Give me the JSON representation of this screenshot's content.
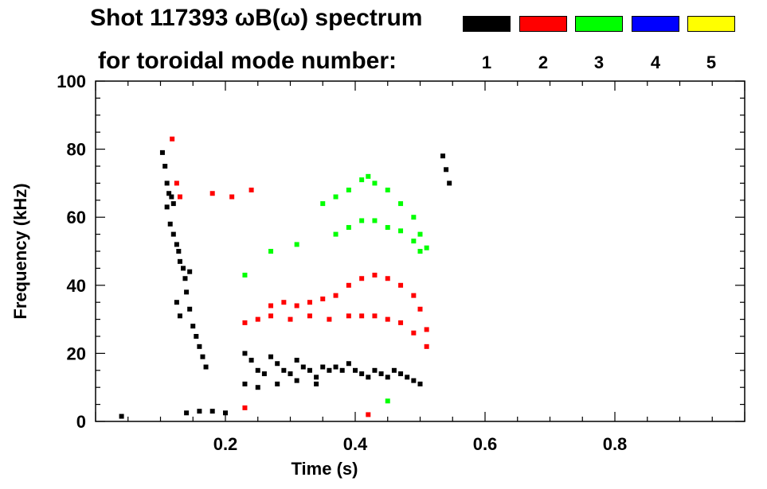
{
  "chart_data": {
    "type": "scatter",
    "title_line1": "Shot 117393 ωB(ω) spectrum",
    "title_line2": "for toroidal mode number:",
    "xlabel": "Time (s)",
    "ylabel": "Frequency (kHz)",
    "xlim": [
      0.0,
      1.0
    ],
    "ylim": [
      0,
      100
    ],
    "xticks": [
      0.2,
      0.4,
      0.6,
      0.8
    ],
    "xtick_labels": [
      "0.2",
      "0.4",
      "0.6",
      "0.8"
    ],
    "yticks": [
      0,
      20,
      40,
      60,
      80,
      100
    ],
    "ytick_labels": [
      "0",
      "20",
      "40",
      "60",
      "80",
      "100"
    ],
    "grid": false,
    "legend": {
      "placement": "top-right",
      "entries": [
        {
          "label": "1",
          "color": "#000000"
        },
        {
          "label": "2",
          "color": "#ff0000"
        },
        {
          "label": "3",
          "color": "#00ff00"
        },
        {
          "label": "4",
          "color": "#0000ff"
        },
        {
          "label": "5",
          "color": "#ffff00"
        }
      ]
    },
    "series": [
      {
        "name": "1",
        "color": "#000000",
        "points": [
          [
            0.103,
            79
          ],
          [
            0.107,
            75
          ],
          [
            0.11,
            70
          ],
          [
            0.113,
            67
          ],
          [
            0.117,
            66
          ],
          [
            0.12,
            64
          ],
          [
            0.11,
            63
          ],
          [
            0.115,
            58
          ],
          [
            0.12,
            55
          ],
          [
            0.125,
            52
          ],
          [
            0.128,
            50
          ],
          [
            0.13,
            47
          ],
          [
            0.135,
            45
          ],
          [
            0.138,
            42
          ],
          [
            0.14,
            38
          ],
          [
            0.145,
            33
          ],
          [
            0.15,
            28
          ],
          [
            0.155,
            25
          ],
          [
            0.16,
            22
          ],
          [
            0.165,
            19
          ],
          [
            0.17,
            16
          ],
          [
            0.125,
            35
          ],
          [
            0.13,
            31
          ],
          [
            0.145,
            44
          ],
          [
            0.23,
            20
          ],
          [
            0.24,
            18
          ],
          [
            0.25,
            15
          ],
          [
            0.26,
            14
          ],
          [
            0.27,
            19
          ],
          [
            0.28,
            17
          ],
          [
            0.29,
            15
          ],
          [
            0.3,
            14
          ],
          [
            0.31,
            18
          ],
          [
            0.32,
            16
          ],
          [
            0.33,
            15
          ],
          [
            0.34,
            13
          ],
          [
            0.35,
            16
          ],
          [
            0.36,
            15
          ],
          [
            0.23,
            11
          ],
          [
            0.25,
            10
          ],
          [
            0.28,
            11
          ],
          [
            0.31,
            12
          ],
          [
            0.34,
            11
          ],
          [
            0.37,
            16
          ],
          [
            0.38,
            15
          ],
          [
            0.39,
            17
          ],
          [
            0.4,
            15
          ],
          [
            0.41,
            14
          ],
          [
            0.42,
            13
          ],
          [
            0.43,
            15
          ],
          [
            0.44,
            14
          ],
          [
            0.45,
            13
          ],
          [
            0.46,
            15
          ],
          [
            0.47,
            14
          ],
          [
            0.48,
            13
          ],
          [
            0.49,
            12
          ],
          [
            0.5,
            11
          ],
          [
            0.535,
            78
          ],
          [
            0.54,
            74
          ],
          [
            0.545,
            70
          ],
          [
            0.04,
            1.5
          ],
          [
            0.14,
            2.5
          ],
          [
            0.16,
            3
          ],
          [
            0.18,
            3
          ],
          [
            0.2,
            2.5
          ]
        ]
      },
      {
        "name": "2",
        "color": "#ff0000",
        "points": [
          [
            0.118,
            83
          ],
          [
            0.125,
            70
          ],
          [
            0.13,
            66
          ],
          [
            0.18,
            67
          ],
          [
            0.21,
            66
          ],
          [
            0.24,
            68
          ],
          [
            0.23,
            29
          ],
          [
            0.25,
            30
          ],
          [
            0.27,
            34
          ],
          [
            0.29,
            35
          ],
          [
            0.31,
            34
          ],
          [
            0.33,
            35
          ],
          [
            0.35,
            36
          ],
          [
            0.37,
            37
          ],
          [
            0.39,
            40
          ],
          [
            0.41,
            42
          ],
          [
            0.43,
            43
          ],
          [
            0.45,
            42
          ],
          [
            0.47,
            40
          ],
          [
            0.49,
            37
          ],
          [
            0.5,
            33
          ],
          [
            0.51,
            27
          ],
          [
            0.27,
            31
          ],
          [
            0.3,
            30
          ],
          [
            0.33,
            31
          ],
          [
            0.36,
            30
          ],
          [
            0.39,
            31
          ],
          [
            0.41,
            31
          ],
          [
            0.43,
            31
          ],
          [
            0.45,
            30
          ],
          [
            0.47,
            29
          ],
          [
            0.49,
            26
          ],
          [
            0.51,
            22
          ],
          [
            0.42,
            2
          ],
          [
            0.23,
            4
          ]
        ]
      },
      {
        "name": "3",
        "color": "#00ff00",
        "points": [
          [
            0.35,
            64
          ],
          [
            0.37,
            66
          ],
          [
            0.39,
            68
          ],
          [
            0.41,
            71
          ],
          [
            0.42,
            72
          ],
          [
            0.43,
            70
          ],
          [
            0.45,
            68
          ],
          [
            0.47,
            64
          ],
          [
            0.49,
            60
          ],
          [
            0.5,
            55
          ],
          [
            0.51,
            51
          ],
          [
            0.37,
            55
          ],
          [
            0.39,
            57
          ],
          [
            0.41,
            59
          ],
          [
            0.43,
            59
          ],
          [
            0.45,
            57
          ],
          [
            0.47,
            56
          ],
          [
            0.49,
            53
          ],
          [
            0.5,
            50
          ],
          [
            0.23,
            43
          ],
          [
            0.27,
            50
          ],
          [
            0.31,
            52
          ],
          [
            0.45,
            6
          ]
        ]
      },
      {
        "name": "4",
        "color": "#0000ff",
        "points": []
      },
      {
        "name": "5",
        "color": "#ffff00",
        "points": []
      }
    ]
  }
}
